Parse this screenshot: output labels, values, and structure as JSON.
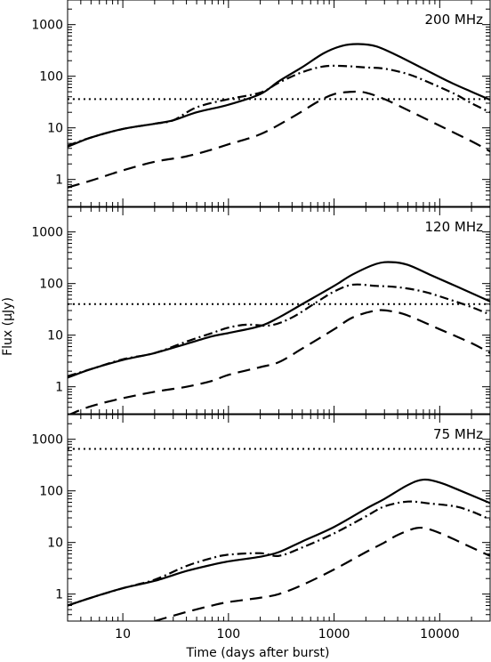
{
  "figure": {
    "xlabel": "Time (days after burst)",
    "ylabel": "Flux (μJy)"
  },
  "chart_data": [
    {
      "type": "line",
      "title": "200 MHz",
      "xscale": "log",
      "yscale": "log",
      "xlim": [
        3,
        30000
      ],
      "ylim": [
        0.3,
        3000
      ],
      "x_ticks": [
        10,
        100,
        1000,
        10000
      ],
      "y_ticks": [
        1,
        10,
        100,
        1000
      ],
      "y_tick_labels": [
        "1",
        "10",
        "100",
        "1000"
      ],
      "grid": false,
      "series": [
        {
          "style": "solid",
          "points": [
            [
              3,
              4.3
            ],
            [
              5,
              6.5
            ],
            [
              10,
              9.5
            ],
            [
              20,
              12
            ],
            [
              30,
              14
            ],
            [
              50,
              20
            ],
            [
              100,
              28
            ],
            [
              200,
              45
            ],
            [
              300,
              80
            ],
            [
              500,
              150
            ],
            [
              800,
              280
            ],
            [
              1200,
              390
            ],
            [
              1700,
              420
            ],
            [
              2500,
              380
            ],
            [
              4000,
              250
            ],
            [
              7000,
              140
            ],
            [
              12000,
              80
            ],
            [
              20000,
              50
            ],
            [
              30000,
              35
            ]
          ]
        },
        {
          "style": "dashdot",
          "points": [
            [
              3,
              4.5
            ],
            [
              5,
              6.5
            ],
            [
              10,
              9.5
            ],
            [
              20,
              12
            ],
            [
              30,
              14
            ],
            [
              50,
              25
            ],
            [
              100,
              36
            ],
            [
              200,
              48
            ],
            [
              300,
              75
            ],
            [
              500,
              120
            ],
            [
              800,
              155
            ],
            [
              1200,
              158
            ],
            [
              2000,
              148
            ],
            [
              3000,
              140
            ],
            [
              5000,
              110
            ],
            [
              8000,
              75
            ],
            [
              14000,
              45
            ],
            [
              20000,
              30
            ],
            [
              30000,
              20
            ]
          ]
        },
        {
          "style": "dashed",
          "points": [
            [
              3,
              0.7
            ],
            [
              5,
              0.95
            ],
            [
              10,
              1.5
            ],
            [
              20,
              2.2
            ],
            [
              40,
              2.8
            ],
            [
              70,
              3.8
            ],
            [
              100,
              4.8
            ],
            [
              200,
              7.5
            ],
            [
              400,
              16
            ],
            [
              700,
              32
            ],
            [
              1000,
              45
            ],
            [
              1500,
              50
            ],
            [
              2000,
              48
            ],
            [
              3000,
              36
            ],
            [
              5000,
              22
            ],
            [
              10000,
              11
            ],
            [
              20000,
              5.5
            ],
            [
              30000,
              3.5
            ]
          ]
        },
        {
          "style": "dotted",
          "points": [
            [
              3,
              36
            ],
            [
              30000,
              36
            ]
          ]
        }
      ]
    },
    {
      "type": "line",
      "title": "120 MHz",
      "xscale": "log",
      "yscale": "log",
      "xlim": [
        3,
        30000
      ],
      "ylim": [
        0.3,
        3000
      ],
      "x_ticks": [
        10,
        100,
        1000,
        10000
      ],
      "y_ticks": [
        1,
        10,
        100,
        1000
      ],
      "y_tick_labels": [
        "1",
        "10",
        "100",
        "1000"
      ],
      "grid": false,
      "series": [
        {
          "style": "solid",
          "points": [
            [
              3,
              1.5
            ],
            [
              5,
              2.2
            ],
            [
              10,
              3.3
            ],
            [
              20,
              4.5
            ],
            [
              40,
              6.8
            ],
            [
              70,
              9.5
            ],
            [
              100,
              11
            ],
            [
              200,
              15
            ],
            [
              300,
              22
            ],
            [
              500,
              40
            ],
            [
              1000,
              90
            ],
            [
              1500,
              150
            ],
            [
              2500,
              240
            ],
            [
              3500,
              260
            ],
            [
              5000,
              230
            ],
            [
              8000,
              150
            ],
            [
              15000,
              85
            ],
            [
              30000,
              45
            ]
          ]
        },
        {
          "style": "dashdot",
          "points": [
            [
              3,
              1.6
            ],
            [
              5,
              2.2
            ],
            [
              10,
              3.4
            ],
            [
              20,
              4.5
            ],
            [
              40,
              7.5
            ],
            [
              70,
              11
            ],
            [
              100,
              14
            ],
            [
              150,
              16
            ],
            [
              250,
              15.5
            ],
            [
              400,
              22
            ],
            [
              700,
              45
            ],
            [
              1000,
              70
            ],
            [
              1500,
              95
            ],
            [
              2500,
              90
            ],
            [
              4000,
              85
            ],
            [
              7000,
              70
            ],
            [
              12000,
              50
            ],
            [
              20000,
              35
            ],
            [
              30000,
              25
            ]
          ]
        },
        {
          "style": "dashed",
          "points": [
            [
              3,
              0.28
            ],
            [
              5,
              0.42
            ],
            [
              10,
              0.6
            ],
            [
              20,
              0.8
            ],
            [
              40,
              1.0
            ],
            [
              70,
              1.3
            ],
            [
              100,
              1.7
            ],
            [
              200,
              2.4
            ],
            [
              300,
              3.0
            ],
            [
              500,
              5.5
            ],
            [
              1000,
              13
            ],
            [
              1500,
              22
            ],
            [
              2500,
              30
            ],
            [
              3500,
              29
            ],
            [
              5000,
              24
            ],
            [
              10000,
              13
            ],
            [
              20000,
              7
            ],
            [
              30000,
              4.5
            ]
          ]
        },
        {
          "style": "dotted",
          "points": [
            [
              3,
              40
            ],
            [
              30000,
              40
            ]
          ]
        }
      ]
    },
    {
      "type": "line",
      "title": "75 MHz",
      "xscale": "log",
      "yscale": "log",
      "xlim": [
        3,
        30000
      ],
      "ylim": [
        0.3,
        3000
      ],
      "x_ticks": [
        10,
        100,
        1000,
        10000
      ],
      "x_tick_labels": [
        "10",
        "100",
        "1000",
        "10000"
      ],
      "y_ticks": [
        1,
        10,
        100,
        1000
      ],
      "y_tick_labels": [
        "1",
        "10",
        "100",
        "1000"
      ],
      "grid": false,
      "series": [
        {
          "style": "solid",
          "points": [
            [
              3,
              0.6
            ],
            [
              5,
              0.85
            ],
            [
              10,
              1.3
            ],
            [
              20,
              1.8
            ],
            [
              40,
              2.8
            ],
            [
              70,
              3.7
            ],
            [
              100,
              4.3
            ],
            [
              200,
              5.3
            ],
            [
              300,
              6.5
            ],
            [
              500,
              10.5
            ],
            [
              1000,
              20
            ],
            [
              2000,
              45
            ],
            [
              3000,
              70
            ],
            [
              5000,
              130
            ],
            [
              7000,
              165
            ],
            [
              10000,
              145
            ],
            [
              15000,
              105
            ],
            [
              30000,
              58
            ]
          ]
        },
        {
          "style": "dashdot",
          "points": [
            [
              3,
              0.6
            ],
            [
              5,
              0.85
            ],
            [
              10,
              1.3
            ],
            [
              20,
              1.9
            ],
            [
              40,
              3.5
            ],
            [
              70,
              5
            ],
            [
              100,
              5.8
            ],
            [
              200,
              6.2
            ],
            [
              300,
              5.5
            ],
            [
              500,
              8
            ],
            [
              1000,
              15
            ],
            [
              2000,
              32
            ],
            [
              3000,
              50
            ],
            [
              5000,
              62
            ],
            [
              8000,
              57
            ],
            [
              14000,
              50
            ],
            [
              20000,
              40
            ],
            [
              30000,
              28
            ]
          ]
        },
        {
          "style": "dashed",
          "points": [
            [
              20,
              0.3
            ],
            [
              40,
              0.45
            ],
            [
              70,
              0.6
            ],
            [
              100,
              0.7
            ],
            [
              200,
              0.85
            ],
            [
              300,
              1.0
            ],
            [
              500,
              1.5
            ],
            [
              1000,
              3.0
            ],
            [
              2000,
              6.5
            ],
            [
              3000,
              10
            ],
            [
              4000,
              14
            ],
            [
              6000,
              19
            ],
            [
              8000,
              18
            ],
            [
              12000,
              13
            ],
            [
              20000,
              8
            ],
            [
              30000,
              5.5
            ]
          ]
        },
        {
          "style": "dotted",
          "points": [
            [
              3,
              650
            ],
            [
              30000,
              650
            ]
          ]
        }
      ]
    }
  ]
}
